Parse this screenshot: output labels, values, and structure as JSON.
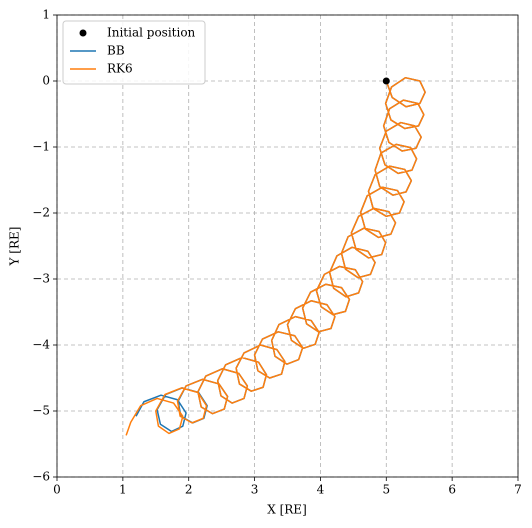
{
  "chart_data": {
    "type": "line",
    "xlabel": "X [RE]",
    "ylabel": "Y [RE]",
    "xlim": [
      0,
      7
    ],
    "ylim": [
      -6,
      1
    ],
    "xticks": [
      0,
      1,
      2,
      3,
      4,
      5,
      6,
      7
    ],
    "yticks": [
      {
        "value": -6,
        "label": "−6"
      },
      {
        "value": -5,
        "label": "−5"
      },
      {
        "value": -4,
        "label": "−4"
      },
      {
        "value": -3,
        "label": "−3"
      },
      {
        "value": -2,
        "label": "−2"
      },
      {
        "value": -1,
        "label": "−1"
      },
      0,
      1
    ],
    "grid": true,
    "legend": "upper left",
    "series": [
      {
        "name": "Initial position",
        "type": "scatter",
        "color": "#000000",
        "x": [
          5
        ],
        "y": [
          0
        ]
      },
      {
        "name": "BB",
        "type": "line",
        "color": "#1f77b4",
        "x": [
          5.0,
          5.09,
          5.3,
          5.51,
          5.59,
          5.51,
          5.29,
          5.08,
          4.99,
          5.07,
          5.28,
          5.49,
          5.57,
          5.48,
          5.26,
          5.05,
          4.96,
          5.04,
          5.24,
          5.45,
          5.53,
          5.43,
          5.22,
          5.0,
          4.9,
          4.98,
          5.18,
          5.39,
          5.46,
          5.37,
          5.15,
          4.92,
          4.83,
          4.9,
          5.1,
          5.3,
          5.38,
          5.28,
          5.05,
          4.83,
          4.73,
          4.8,
          5.0,
          5.2,
          5.27,
          5.17,
          4.94,
          4.71,
          4.61,
          4.68,
          4.88,
          5.07,
          5.14,
          5.04,
          4.81,
          4.58,
          4.47,
          4.54,
          4.73,
          4.93,
          4.99,
          4.89,
          4.66,
          4.42,
          4.32,
          4.38,
          4.57,
          4.76,
          4.83,
          4.72,
          4.48,
          4.25,
          4.14,
          4.2,
          4.39,
          4.58,
          4.64,
          4.53,
          4.29,
          4.06,
          3.94,
          4.01,
          4.19,
          4.38,
          4.44,
          4.32,
          4.08,
          3.85,
          3.73,
          3.79,
          3.97,
          4.16,
          4.22,
          4.1,
          3.86,
          3.62,
          3.5,
          3.56,
          3.74,
          3.92,
          3.98,
          3.86,
          3.62,
          3.37,
          3.26,
          3.31,
          3.49,
          3.67,
          3.73,
          3.61,
          3.36,
          3.12,
          3.0,
          3.05,
          3.23,
          3.41,
          3.46,
          3.34,
          3.09,
          2.84,
          2.72,
          2.77,
          2.95,
          3.13,
          3.18,
          3.06,
          2.81,
          2.56,
          2.44,
          2.49,
          2.66,
          2.84,
          2.89,
          2.76,
          2.51,
          2.26,
          2.14,
          2.19,
          2.36,
          2.54,
          2.59,
          2.46,
          2.21,
          1.96,
          1.84,
          1.88,
          2.06,
          2.23,
          2.28,
          2.15,
          1.9,
          1.65,
          1.52,
          1.57,
          1.74,
          1.91,
          1.96,
          1.83,
          1.58,
          1.32,
          1.2
        ],
        "y": [
          0,
          -0.25,
          -0.39,
          -0.34,
          -0.17,
          0,
          0.05,
          -0.09,
          -0.34,
          -0.59,
          -0.72,
          -0.68,
          -0.51,
          -0.34,
          -0.29,
          -0.42,
          -0.68,
          -0.93,
          -1.06,
          -1.02,
          -0.85,
          -0.68,
          -0.63,
          -0.76,
          -1.02,
          -1.27,
          -1.4,
          -1.35,
          -1.18,
          -1.01,
          -0.96,
          -1.09,
          -1.35,
          -1.6,
          -1.73,
          -1.68,
          -1.51,
          -1.34,
          -1.29,
          -1.42,
          -1.67,
          -1.93,
          -2.05,
          -2.0,
          -1.83,
          -1.66,
          -1.61,
          -1.74,
          -1.99,
          -2.24,
          -2.37,
          -2.32,
          -2.15,
          -1.98,
          -1.93,
          -2.05,
          -2.3,
          -2.55,
          -2.68,
          -2.63,
          -2.45,
          -2.28,
          -2.23,
          -2.36,
          -2.61,
          -2.85,
          -2.98,
          -2.93,
          -2.75,
          -2.58,
          -2.52,
          -2.65,
          -2.9,
          -3.14,
          -3.27,
          -3.21,
          -3.04,
          -2.86,
          -2.81,
          -2.93,
          -3.18,
          -3.42,
          -3.54,
          -3.49,
          -3.31,
          -3.13,
          -3.08,
          -3.2,
          -3.44,
          -3.68,
          -3.8,
          -3.75,
          -3.57,
          -3.39,
          -3.33,
          -3.45,
          -3.69,
          -3.93,
          -4.05,
          -3.99,
          -3.81,
          -3.63,
          -3.57,
          -3.69,
          -3.93,
          -4.17,
          -4.29,
          -4.22,
          -4.04,
          -3.86,
          -3.8,
          -3.91,
          -4.15,
          -4.39,
          -4.5,
          -4.44,
          -4.25,
          -4.07,
          -4.0,
          -4.12,
          -4.35,
          -4.59,
          -4.7,
          -4.64,
          -4.45,
          -4.26,
          -4.19,
          -4.3,
          -4.54,
          -4.77,
          -4.88,
          -4.81,
          -4.62,
          -4.43,
          -4.36,
          -4.47,
          -4.71,
          -4.94,
          -5.04,
          -4.97,
          -4.78,
          -4.59,
          -4.52,
          -4.62,
          -4.85,
          -5.08,
          -5.18,
          -5.11,
          -4.92,
          -4.72,
          -4.65,
          -4.75,
          -4.98,
          -5.2,
          -5.31,
          -5.23,
          -5.03,
          -4.83,
          -4.76,
          -4.86,
          -5.08
        ]
      },
      {
        "name": "RK6",
        "type": "line",
        "color": "#ff7f0e",
        "x": [
          5.0,
          5.09,
          5.3,
          5.51,
          5.59,
          5.51,
          5.29,
          5.08,
          4.99,
          5.07,
          5.28,
          5.49,
          5.57,
          5.48,
          5.26,
          5.05,
          4.96,
          5.04,
          5.24,
          5.45,
          5.53,
          5.43,
          5.22,
          5.0,
          4.9,
          4.98,
          5.18,
          5.39,
          5.46,
          5.37,
          5.15,
          4.92,
          4.83,
          4.9,
          5.1,
          5.3,
          5.38,
          5.28,
          5.05,
          4.83,
          4.73,
          4.8,
          5.0,
          5.2,
          5.27,
          5.17,
          4.94,
          4.71,
          4.61,
          4.68,
          4.88,
          5.07,
          5.14,
          5.04,
          4.81,
          4.58,
          4.47,
          4.54,
          4.73,
          4.93,
          4.99,
          4.89,
          4.66,
          4.42,
          4.32,
          4.38,
          4.57,
          4.76,
          4.83,
          4.72,
          4.48,
          4.25,
          4.14,
          4.2,
          4.39,
          4.58,
          4.64,
          4.53,
          4.29,
          4.06,
          3.94,
          4.01,
          4.19,
          4.38,
          4.44,
          4.32,
          4.08,
          3.85,
          3.73,
          3.79,
          3.97,
          4.16,
          4.22,
          4.1,
          3.86,
          3.62,
          3.5,
          3.56,
          3.74,
          3.92,
          3.98,
          3.86,
          3.62,
          3.37,
          3.26,
          3.31,
          3.49,
          3.67,
          3.73,
          3.61,
          3.36,
          3.12,
          3.0,
          3.05,
          3.23,
          3.41,
          3.46,
          3.34,
          3.09,
          2.84,
          2.72,
          2.77,
          2.95,
          3.13,
          3.18,
          3.06,
          2.81,
          2.56,
          2.44,
          2.49,
          2.66,
          2.84,
          2.89,
          2.76,
          2.51,
          2.26,
          2.14,
          2.19,
          2.36,
          2.54,
          2.59,
          2.46,
          2.21,
          1.96,
          1.83,
          1.87,
          2.05,
          2.22,
          2.27,
          2.14,
          1.89,
          1.64,
          1.5,
          1.54,
          1.7,
          1.86,
          1.91,
          1.77,
          1.52,
          1.27,
          1.12,
          1.05
        ],
        "y": [
          0,
          -0.25,
          -0.39,
          -0.34,
          -0.17,
          0,
          0.05,
          -0.09,
          -0.34,
          -0.59,
          -0.72,
          -0.68,
          -0.51,
          -0.34,
          -0.29,
          -0.42,
          -0.68,
          -0.93,
          -1.06,
          -1.02,
          -0.85,
          -0.68,
          -0.63,
          -0.76,
          -1.02,
          -1.27,
          -1.4,
          -1.35,
          -1.18,
          -1.01,
          -0.96,
          -1.09,
          -1.35,
          -1.6,
          -1.73,
          -1.68,
          -1.51,
          -1.34,
          -1.29,
          -1.42,
          -1.67,
          -1.93,
          -2.05,
          -2.0,
          -1.83,
          -1.66,
          -1.61,
          -1.74,
          -1.99,
          -2.24,
          -2.37,
          -2.32,
          -2.15,
          -1.98,
          -1.93,
          -2.05,
          -2.3,
          -2.55,
          -2.68,
          -2.63,
          -2.45,
          -2.28,
          -2.23,
          -2.36,
          -2.61,
          -2.85,
          -2.98,
          -2.93,
          -2.75,
          -2.58,
          -2.52,
          -2.65,
          -2.9,
          -3.14,
          -3.27,
          -3.21,
          -3.04,
          -2.86,
          -2.81,
          -2.93,
          -3.18,
          -3.42,
          -3.54,
          -3.49,
          -3.31,
          -3.13,
          -3.08,
          -3.2,
          -3.44,
          -3.68,
          -3.8,
          -3.75,
          -3.57,
          -3.39,
          -3.33,
          -3.45,
          -3.69,
          -3.93,
          -4.05,
          -3.99,
          -3.81,
          -3.63,
          -3.57,
          -3.69,
          -3.93,
          -4.17,
          -4.29,
          -4.22,
          -4.04,
          -3.86,
          -3.8,
          -3.91,
          -4.15,
          -4.39,
          -4.5,
          -4.44,
          -4.25,
          -4.07,
          -4.0,
          -4.12,
          -4.35,
          -4.59,
          -4.7,
          -4.64,
          -4.45,
          -4.26,
          -4.19,
          -4.3,
          -4.54,
          -4.77,
          -4.88,
          -4.81,
          -4.62,
          -4.43,
          -4.36,
          -4.47,
          -4.71,
          -4.94,
          -5.04,
          -4.97,
          -4.78,
          -4.59,
          -4.52,
          -4.62,
          -4.85,
          -5.08,
          -5.18,
          -5.11,
          -4.92,
          -4.72,
          -4.65,
          -4.75,
          -5.0,
          -5.23,
          -5.34,
          -5.27,
          -5.08,
          -4.88,
          -4.81,
          -4.92,
          -5.17,
          -5.37
        ]
      }
    ]
  }
}
